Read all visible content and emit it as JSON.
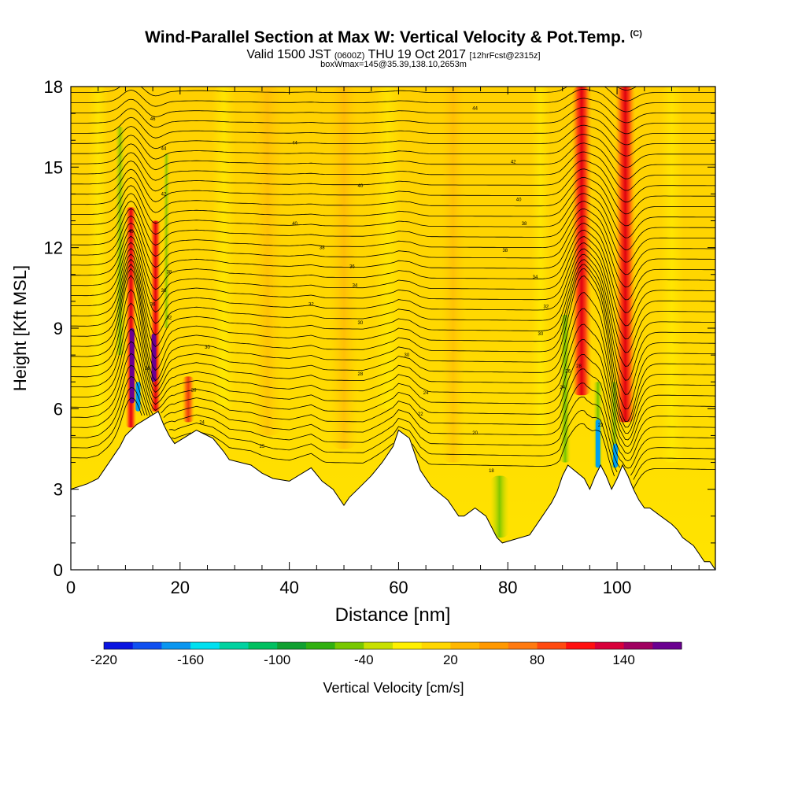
{
  "header": {
    "title": "Wind-Parallel Section at Max W: Vertical Velocity & Pot.Temp.",
    "copyright": "(C)",
    "valid_pre": "Valid 1500 JST",
    "valid_small1": "(0600Z)",
    "valid_mid": "THU 19 Oct 2017",
    "valid_small2": "[12hrFcst@2315z]",
    "box": "boxWmax=145@35.39,138.10,2653m"
  },
  "chart_data": {
    "type": "heatmap",
    "title": "Wind-Parallel Section at Max W: Vertical Velocity & Pot.Temp.",
    "xlabel": "Distance [nm]",
    "ylabel": "Height [Kft MSL]",
    "xlim": [
      0,
      118
    ],
    "ylim": [
      0,
      18
    ],
    "xticks": [
      0,
      20,
      40,
      60,
      80,
      100
    ],
    "yticks": [
      0,
      3,
      6,
      9,
      12,
      15,
      18
    ],
    "terrain": {
      "x": [
        0,
        3,
        5,
        6,
        7,
        8,
        9,
        10,
        12,
        16,
        17,
        18,
        19,
        23,
        26,
        28,
        29,
        33,
        35,
        37,
        40,
        44,
        46,
        48,
        49,
        50,
        51,
        53,
        55,
        57,
        59,
        60,
        62,
        63,
        64,
        66,
        69,
        70,
        71,
        72,
        74,
        76,
        77,
        78,
        79,
        84,
        85,
        86,
        87,
        88,
        89,
        90,
        91,
        94,
        95,
        96,
        97,
        98,
        99,
        100,
        101,
        102,
        103,
        104,
        105,
        106,
        108,
        110,
        111,
        112,
        114,
        115,
        116,
        117
      ],
      "y": [
        3.0,
        3.2,
        3.4,
        3.7,
        4.0,
        4.3,
        4.6,
        5.0,
        5.4,
        5.9,
        5.4,
        5.0,
        4.7,
        5.2,
        4.9,
        4.4,
        4.1,
        3.9,
        3.6,
        3.4,
        3.3,
        3.8,
        3.3,
        3.0,
        2.7,
        2.4,
        2.7,
        3.1,
        3.5,
        4.0,
        4.6,
        5.2,
        4.9,
        4.3,
        3.7,
        3.1,
        2.6,
        2.3,
        2.0,
        2.0,
        2.3,
        2.0,
        1.6,
        1.2,
        1.0,
        1.3,
        1.6,
        1.9,
        2.2,
        2.5,
        2.9,
        3.5,
        3.9,
        3.4,
        3.0,
        3.5,
        3.9,
        3.5,
        3.0,
        3.4,
        3.9,
        3.5,
        3.0,
        2.6,
        2.3,
        2.3,
        2.0,
        1.7,
        1.5,
        1.2,
        0.9,
        0.6,
        0.3,
        0.3
      ]
    },
    "isotherm_labels": [
      {
        "x": 15.0,
        "y": 16.8,
        "text": "46"
      },
      {
        "x": 17.0,
        "y": 15.7,
        "text": "44"
      },
      {
        "x": 17.0,
        "y": 14.0,
        "text": "42"
      },
      {
        "x": 11.0,
        "y": 12.6,
        "text": "40"
      },
      {
        "x": 18.0,
        "y": 11.1,
        "text": "38"
      },
      {
        "x": 17.0,
        "y": 10.4,
        "text": "36"
      },
      {
        "x": 15.0,
        "y": 9.9,
        "text": "36"
      },
      {
        "x": 18.0,
        "y": 9.4,
        "text": "32"
      },
      {
        "x": 25.0,
        "y": 8.3,
        "text": "30"
      },
      {
        "x": 22.5,
        "y": 6.7,
        "text": "26"
      },
      {
        "x": 24.0,
        "y": 5.5,
        "text": "24"
      },
      {
        "x": 14.0,
        "y": 7.5,
        "text": "26"
      },
      {
        "x": 41.0,
        "y": 15.9,
        "text": "44"
      },
      {
        "x": 53.0,
        "y": 14.3,
        "text": "40"
      },
      {
        "x": 41.0,
        "y": 12.9,
        "text": "40"
      },
      {
        "x": 46.0,
        "y": 12.0,
        "text": "38"
      },
      {
        "x": 51.5,
        "y": 11.3,
        "text": "36"
      },
      {
        "x": 52.0,
        "y": 10.6,
        "text": "34"
      },
      {
        "x": 44.0,
        "y": 9.9,
        "text": "32"
      },
      {
        "x": 53.0,
        "y": 9.2,
        "text": "30"
      },
      {
        "x": 61.5,
        "y": 8.0,
        "text": "30"
      },
      {
        "x": 53.0,
        "y": 7.3,
        "text": "28"
      },
      {
        "x": 65.0,
        "y": 6.6,
        "text": "24"
      },
      {
        "x": 64.0,
        "y": 5.8,
        "text": "22"
      },
      {
        "x": 35.0,
        "y": 4.6,
        "text": "25"
      },
      {
        "x": 74.0,
        "y": 5.1,
        "text": "20"
      },
      {
        "x": 77.0,
        "y": 3.7,
        "text": "18"
      },
      {
        "x": 74.0,
        "y": 17.2,
        "text": "44"
      },
      {
        "x": 81.0,
        "y": 15.2,
        "text": "42"
      },
      {
        "x": 82.0,
        "y": 13.8,
        "text": "40"
      },
      {
        "x": 83.0,
        "y": 12.9,
        "text": "38"
      },
      {
        "x": 79.5,
        "y": 11.9,
        "text": "38"
      },
      {
        "x": 85.0,
        "y": 10.9,
        "text": "34"
      },
      {
        "x": 87.0,
        "y": 9.8,
        "text": "32"
      },
      {
        "x": 86.0,
        "y": 8.8,
        "text": "30"
      },
      {
        "x": 91.0,
        "y": 7.4,
        "text": "26"
      },
      {
        "x": 93.0,
        "y": 7.6,
        "text": "28"
      },
      {
        "x": 90.0,
        "y": 6.8,
        "text": "24"
      },
      {
        "x": 97.0,
        "y": 5.4,
        "text": "22"
      }
    ],
    "colorbar": {
      "label": "Vertical Velocity [cm/s]",
      "min": -220,
      "max": 180,
      "step": 20,
      "tick_labels": [
        "-220",
        "-160",
        "-100",
        "-40",
        "20",
        "80",
        "140"
      ],
      "tick_values": [
        -220,
        -160,
        -100,
        -40,
        20,
        80,
        140
      ],
      "colors": [
        "#0a14e0",
        "#1050f0",
        "#0a96f0",
        "#00e0f0",
        "#00d2a0",
        "#00c060",
        "#10a030",
        "#30b010",
        "#78c800",
        "#c8e000",
        "#fff000",
        "#ffd700",
        "#ffb700",
        "#ff9800",
        "#ff7a10",
        "#ff4a10",
        "#ff1010",
        "#d8003a",
        "#a00060",
        "#6a0090"
      ]
    }
  }
}
